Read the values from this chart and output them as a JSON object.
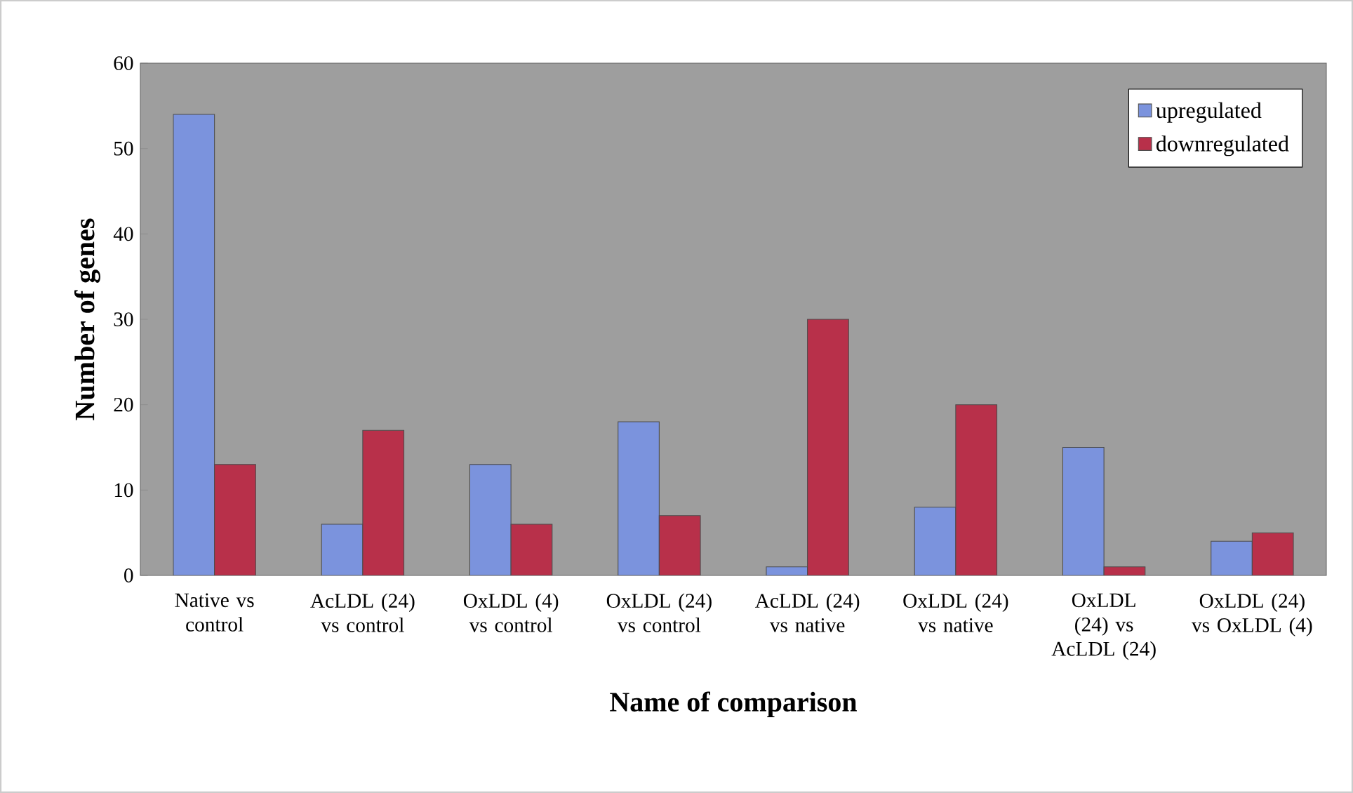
{
  "chart_data": {
    "type": "bar",
    "xlabel": "Name of comparison",
    "ylabel": "Number of genes",
    "categories": [
      "Native vs control",
      "AcLDL (24) vs control",
      "OxLDL (4) vs control",
      "OxLDL (24) vs control",
      "AcLDL (24) vs native",
      "OxLDL (24) vs native",
      "OxLDL (24) vs AcLDL (24)",
      "OxLDL (24) vs OxLDL (4)"
    ],
    "series": [
      {
        "name": "upregulated",
        "color": "#7b93dd",
        "values": [
          54,
          6,
          13,
          18,
          1,
          8,
          15,
          4
        ]
      },
      {
        "name": "downregulated",
        "color": "#b8304a",
        "values": [
          13,
          17,
          6,
          7,
          30,
          20,
          1,
          5
        ]
      }
    ],
    "ylim": [
      0,
      60
    ],
    "yticks": [
      0,
      10,
      20,
      30,
      40,
      50,
      60
    ],
    "legend": "top right",
    "grid": false
  }
}
